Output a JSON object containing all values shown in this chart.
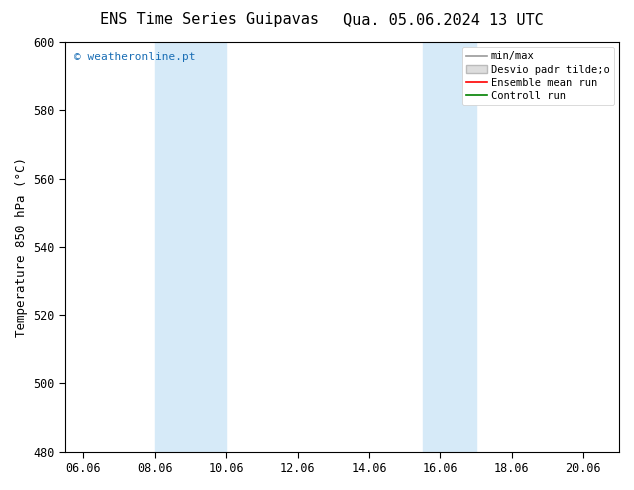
{
  "title_left": "ENS Time Series Guipavas",
  "title_right": "Qua. 05.06.2024 13 UTC",
  "ylabel": "Temperature 850 hPa (°C)",
  "xlim_min": 5.5,
  "xlim_max": 21.0,
  "ylim_min": 480,
  "ylim_max": 600,
  "yticks": [
    480,
    500,
    520,
    540,
    560,
    580,
    600
  ],
  "xtick_labels": [
    "06.06",
    "08.06",
    "10.06",
    "12.06",
    "14.06",
    "16.06",
    "18.06",
    "20.06"
  ],
  "xtick_positions": [
    6.0,
    8.0,
    10.0,
    12.0,
    14.0,
    16.0,
    18.0,
    20.0
  ],
  "shaded_bands": [
    {
      "xmin": 8.0,
      "xmax": 10.0
    },
    {
      "xmin": 15.5,
      "xmax": 17.0
    }
  ],
  "shade_color": "#d6eaf8",
  "background_color": "#ffffff",
  "watermark_text": "© weatheronline.pt",
  "watermark_color": "#1a6eb5",
  "legend_labels": [
    "min/max",
    "Desvio padr tilde;o",
    "Ensemble mean run",
    "Controll run"
  ],
  "legend_colors": [
    "#999999",
    "#cccccc",
    "#ff0000",
    "#008000"
  ],
  "title_fontsize": 11,
  "label_fontsize": 9,
  "tick_fontsize": 8.5,
  "legend_fontsize": 7.5
}
